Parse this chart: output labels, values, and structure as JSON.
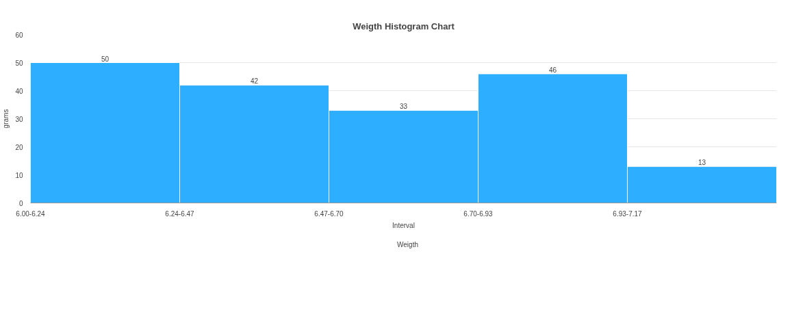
{
  "chart_data": {
    "type": "bar",
    "title": "Weigth Histogram Chart",
    "xlabel": "Interval",
    "ylabel": "grams",
    "categories": [
      "6.00-6.24",
      "6.24-6.47",
      "6.47-6.70",
      "6.70-6.93",
      "6.93-7.17"
    ],
    "series": [
      {
        "name": "Weigth",
        "color": "#2eaeff",
        "values": [
          50,
          42,
          33,
          46,
          13
        ]
      }
    ],
    "ylim": [
      0,
      60
    ],
    "yticks": [
      0,
      10,
      20,
      30,
      40,
      50,
      60
    ],
    "grid": "y",
    "legend": "bottom",
    "data_labels": true
  }
}
